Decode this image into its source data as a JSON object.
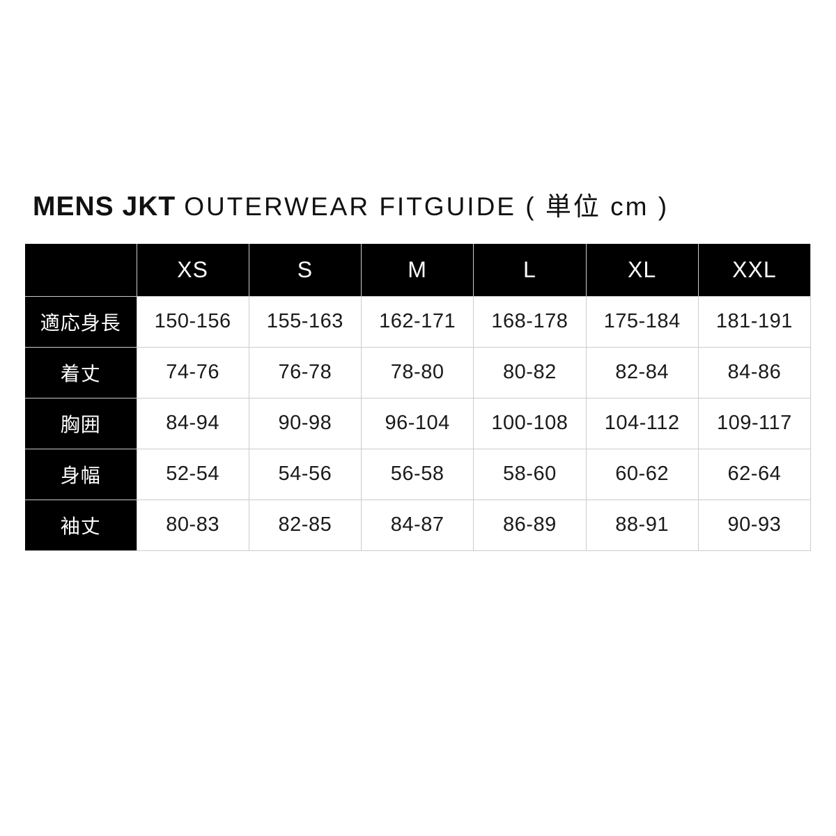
{
  "title": {
    "product": "MENS JKT",
    "rest": "OUTERWEAR FITGUIDE ( 単位 cm )"
  },
  "chart_data": {
    "type": "table",
    "title": "MENS JKT OUTERWEAR FITGUIDE ( 単位 cm )",
    "unit": "cm",
    "columns": [
      "",
      "XS",
      "S",
      "M",
      "L",
      "XL",
      "XXL"
    ],
    "rows": [
      {
        "label": "適応身長",
        "values": [
          "150-156",
          "155-163",
          "162-171",
          "168-178",
          "175-184",
          "181-191"
        ]
      },
      {
        "label": "着丈",
        "values": [
          "74-76",
          "76-78",
          "78-80",
          "80-82",
          "82-84",
          "84-86"
        ]
      },
      {
        "label": "胸囲",
        "values": [
          "84-94",
          "90-98",
          "96-104",
          "100-108",
          "104-112",
          "109-117"
        ]
      },
      {
        "label": "身幅",
        "values": [
          "52-54",
          "54-56",
          "56-58",
          "58-60",
          "60-62",
          "62-64"
        ]
      },
      {
        "label": "袖丈",
        "values": [
          "80-83",
          "82-85",
          "84-87",
          "86-89",
          "88-91",
          "90-93"
        ]
      }
    ]
  },
  "colors": {
    "background": "#ffffff",
    "header_bg": "#000000",
    "header_text": "#ffffff",
    "cell_text": "#1a1a1a",
    "grid_line": "#cccccc"
  }
}
